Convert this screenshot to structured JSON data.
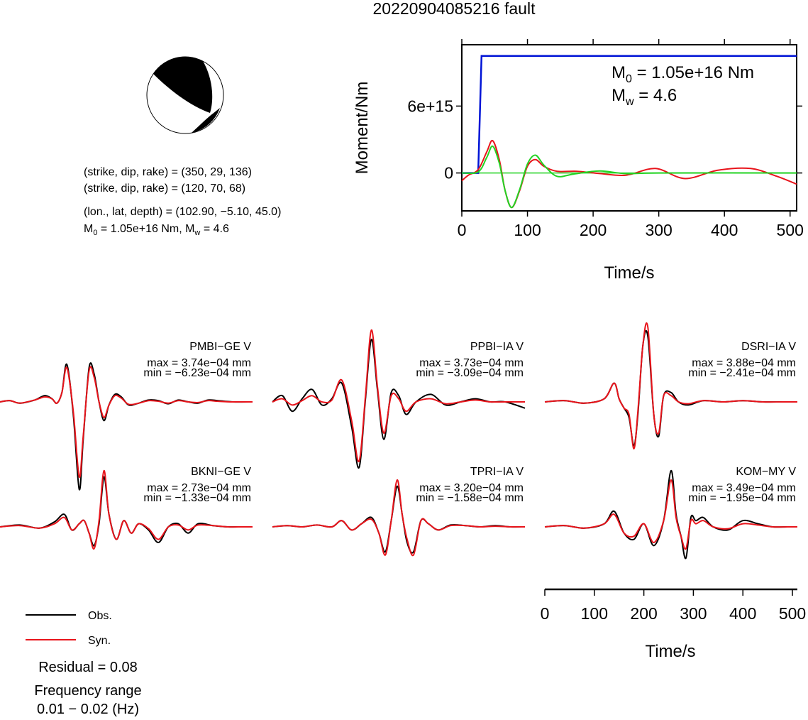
{
  "title": "20220904085216 fault",
  "colors": {
    "obs": "#000000",
    "syn": "#e8141b",
    "moment": "#0014d6",
    "stf": "#23d323",
    "frame": "#000000",
    "beach_fill": "#000000"
  },
  "mechanism": {
    "line1": "(strike, dip, rake) = (350, 29, 136)",
    "line2": "(strike, dip, rake) = (120, 70, 68)",
    "line3": "(lon., lat, depth) = (102.90, −5.10, 45.0)",
    "m0_prefix": "M",
    "m0_sub": "0",
    "m0_text": " = 1.05e+16 Nm, M",
    "mw_sub": "w",
    "mw_text": " = 4.6"
  },
  "moment_panel": {
    "ylabel": "Moment/Nm",
    "xlabel": "Time/s",
    "m0_label_prefix": "M",
    "m0_label_sub": "0",
    "m0_label_text": " = 1.05e+16 Nm",
    "mw_label_prefix": "M",
    "mw_label_sub": "w",
    "mw_label_text": " = 4.6"
  },
  "waveform_time_axis": {
    "xlabel": "Time/s"
  },
  "legend": {
    "obs_label": "Obs.",
    "syn_label": "Syn."
  },
  "residual": "Residual = 0.08",
  "freq_title": "Frequency range",
  "freq_value": "0.01 − 0.02 (Hz)",
  "stations": [
    {
      "name": "PMBI−GE V",
      "max": "max = 3.74e−04 mm",
      "min": "min = −6.23e−04 mm"
    },
    {
      "name": "PPBI−IA V",
      "max": "max = 3.73e−04 mm",
      "min": "min = −3.09e−04 mm"
    },
    {
      "name": "DSRI−IA V",
      "max": "max = 3.88e−04 mm",
      "min": "min = −2.41e−04 mm"
    },
    {
      "name": "BKNI−GE V",
      "max": "max = 2.73e−04 mm",
      "min": "min = −1.33e−04 mm"
    },
    {
      "name": "TPRI−IA V",
      "max": "max = 3.20e−04 mm",
      "min": "min = −1.58e−04 mm"
    },
    {
      "name": "KOM−MY V",
      "max": "max = 3.49e−04 mm",
      "min": "min = −1.95e−04 mm"
    }
  ],
  "chart_data": [
    {
      "type": "line",
      "title": "",
      "xlabel": "Time/s",
      "ylabel": "Moment/Nm",
      "xlim": [
        0,
        510
      ],
      "ylim": [
        -3400000000000000.0,
        1.15e+16
      ],
      "xticks": [
        "0",
        "100",
        "200",
        "300",
        "400",
        "500"
      ],
      "yticks": [
        "0",
        "6e+15"
      ],
      "series": [
        {
          "name": "moment",
          "color": "#0014d6",
          "x": [
            0,
            20,
            25,
            30,
            510
          ],
          "y": [
            0,
            0,
            0,
            1.05e+16,
            1.05e+16
          ]
        },
        {
          "name": "stf_red",
          "color": "#e8141b",
          "x": [
            0,
            10,
            25,
            38,
            47,
            57,
            66,
            76,
            88,
            100,
            112,
            125,
            145,
            175,
            210,
            250,
            295,
            340,
            390,
            440,
            480,
            510
          ],
          "y": [
            -700000000000000.0,
            -200000000000000.0,
            300000000000000.0,
            1900000000000000.0,
            2900000000000000.0,
            1200000000000000.0,
            -1600000000000000.0,
            -3100000000000000.0,
            -1600000000000000.0,
            600000000000000.0,
            1200000000000000.0,
            600000000000000.0,
            150000000000000.0,
            150000000000000.0,
            -50000000000000.0,
            -200000000000000.0,
            400000000000000.0,
            -500000000000000.0,
            250000000000000.0,
            400000000000000.0,
            -300000000000000.0,
            -1000000000000000.0
          ]
        },
        {
          "name": "stf_green",
          "color": "#23d323",
          "x": [
            0,
            25,
            38,
            47,
            57,
            66,
            76,
            88,
            100,
            112,
            125,
            145,
            170,
            210,
            250,
            300,
            510
          ],
          "y": [
            0,
            100000000000000.0,
            1400000000000000.0,
            2400000000000000.0,
            900000000000000.0,
            -1600000000000000.0,
            -3100000000000000.0,
            -1500000000000000.0,
            800000000000000.0,
            1600000000000000.0,
            700000000000000.0,
            -300000000000000.0,
            -100000000000000.0,
            180000000000000.0,
            -60000000000000.0,
            0,
            0
          ]
        }
      ]
    },
    {
      "type": "line",
      "title": "",
      "xlabel": "Time/s",
      "xlim": [
        0,
        510
      ],
      "xticks": [
        "0",
        "100",
        "200",
        "300",
        "400",
        "500"
      ],
      "yunits": "normalized",
      "waveforms": [
        {
          "station": "PMBI−GE V",
          "obs_t": [
            0,
            20,
            40,
            70,
            90,
            105,
            115,
            125,
            135,
            148,
            160,
            168,
            180,
            190,
            200,
            210,
            220,
            232,
            245,
            260,
            280,
            300,
            320,
            340,
            360,
            380,
            400,
            420,
            440,
            470,
            510
          ],
          "obs_y": [
            0,
            0.02,
            -0.02,
            0.03,
            0.1,
            0.05,
            -0.02,
            0.15,
            0.6,
            -0.2,
            -1.4,
            -0.6,
            0.55,
            0.45,
            0,
            -0.3,
            -0.05,
            0.12,
            0.08,
            -0.05,
            -0.02,
            0.03,
            0.02,
            -0.03,
            0.03,
            0.0,
            -0.02,
            0.03,
            0.02,
            0.0,
            0.0
          ],
          "syn_t": [
            0,
            20,
            40,
            70,
            90,
            105,
            115,
            125,
            135,
            148,
            160,
            168,
            180,
            190,
            200,
            210,
            220,
            232,
            245,
            260,
            280,
            300,
            320,
            340,
            360,
            380,
            400,
            420,
            440,
            470,
            510
          ],
          "syn_y": [
            0,
            0.02,
            -0.02,
            0.03,
            0.08,
            0.05,
            -0.02,
            0.15,
            0.55,
            -0.15,
            -1.2,
            -0.55,
            0.5,
            0.4,
            0,
            -0.25,
            -0.05,
            0.1,
            0.06,
            -0.04,
            -0.02,
            0.02,
            0.01,
            -0.02,
            0.02,
            0.0,
            -0.01,
            0.02,
            0.01,
            0.0,
            0.0
          ]
        },
        {
          "station": "PPBI−IA V",
          "obs_t": [
            0,
            20,
            40,
            60,
            80,
            100,
            120,
            140,
            160,
            175,
            188,
            200,
            212,
            225,
            240,
            255,
            270,
            290,
            320,
            350,
            380,
            410,
            440,
            470,
            510
          ],
          "obs_y": [
            0,
            0.1,
            -0.15,
            0.05,
            0.2,
            -0.05,
            0.05,
            0.3,
            -0.4,
            -1.05,
            0.05,
            1.0,
            0.2,
            -0.6,
            0.15,
            0.1,
            -0.2,
            0.0,
            0.12,
            -0.05,
            0.0,
            0.05,
            0.0,
            0.0,
            -0.1
          ],
          "syn_t": [
            0,
            20,
            40,
            60,
            80,
            100,
            120,
            140,
            160,
            175,
            188,
            200,
            212,
            225,
            240,
            255,
            270,
            290,
            320,
            350,
            380,
            410,
            440,
            470,
            510
          ],
          "syn_y": [
            0,
            0.05,
            -0.05,
            0.02,
            0.1,
            0.0,
            0.03,
            0.35,
            -0.3,
            -0.95,
            0.1,
            1.15,
            0.25,
            -0.5,
            0.1,
            0.05,
            -0.15,
            0.0,
            0.05,
            -0.03,
            0.0,
            0.03,
            0.0,
            0.0,
            0.0
          ]
        },
        {
          "station": "DSRI−IA V",
          "obs_t": [
            0,
            40,
            80,
            120,
            140,
            150,
            160,
            170,
            180,
            188,
            198,
            208,
            220,
            230,
            240,
            255,
            270,
            290,
            320,
            360,
            400,
            440,
            480,
            510
          ],
          "obs_y": [
            0,
            0.02,
            -0.02,
            0.05,
            0.3,
            0.05,
            -0.1,
            -0.25,
            -0.7,
            -0.2,
            0.9,
            1.05,
            -0.2,
            -0.55,
            0.1,
            0.15,
            0.0,
            -0.05,
            0.02,
            0.0,
            0.02,
            0.0,
            0.0,
            0.0
          ],
          "syn_t": [
            0,
            40,
            80,
            120,
            140,
            150,
            160,
            170,
            180,
            188,
            198,
            208,
            220,
            230,
            240,
            255,
            270,
            290,
            320,
            360,
            400,
            440,
            480,
            510
          ],
          "syn_y": [
            0,
            0.02,
            -0.02,
            0.05,
            0.3,
            0.05,
            -0.1,
            -0.2,
            -0.75,
            -0.15,
            0.9,
            1.2,
            -0.2,
            -0.5,
            0.1,
            0.1,
            0.0,
            -0.03,
            0.02,
            0.0,
            0.02,
            0.0,
            0.0,
            0.0
          ]
        },
        {
          "station": "BKNI−GE V",
          "obs_t": [
            0,
            40,
            80,
            110,
            130,
            145,
            160,
            170,
            180,
            190,
            200,
            210,
            220,
            235,
            250,
            265,
            280,
            300,
            320,
            340,
            360,
            380,
            400,
            430,
            460,
            490,
            510
          ],
          "obs_y": [
            0,
            0.03,
            -0.02,
            0.08,
            0.2,
            -0.05,
            0.05,
            0.1,
            -0.1,
            -0.3,
            0.05,
            0.8,
            0.2,
            -0.2,
            0.1,
            -0.1,
            0.05,
            -0.05,
            -0.25,
            0.0,
            0.05,
            -0.1,
            0.05,
            0.02,
            0.0,
            0.0,
            0.0
          ],
          "syn_t": [
            0,
            40,
            80,
            110,
            130,
            145,
            160,
            170,
            180,
            190,
            200,
            210,
            220,
            235,
            250,
            265,
            280,
            300,
            320,
            340,
            360,
            380,
            400,
            430,
            460,
            490,
            510
          ],
          "syn_y": [
            0,
            0.02,
            -0.02,
            0.05,
            0.15,
            -0.05,
            0.05,
            0.1,
            -0.1,
            -0.35,
            0.1,
            0.9,
            0.2,
            -0.2,
            0.1,
            -0.1,
            0.05,
            -0.03,
            -0.2,
            0.0,
            0.03,
            -0.05,
            0.03,
            0.02,
            0.0,
            0.0,
            0.0
          ]
        },
        {
          "station": "TPRI−IA V",
          "obs_t": [
            0,
            30,
            60,
            90,
            120,
            140,
            160,
            180,
            200,
            215,
            228,
            240,
            252,
            262,
            272,
            285,
            300,
            315,
            335,
            360,
            390,
            420,
            450,
            480,
            510
          ],
          "obs_y": [
            0,
            0.02,
            0.0,
            0.03,
            0.0,
            0.1,
            -0.05,
            0.05,
            0.15,
            -0.1,
            -0.4,
            0.1,
            0.65,
            0.2,
            -0.25,
            -0.4,
            0.1,
            0.05,
            -0.05,
            0.03,
            0.02,
            0.0,
            0.02,
            0.0,
            0.0
          ],
          "syn_t": [
            0,
            30,
            60,
            90,
            120,
            140,
            160,
            180,
            200,
            215,
            228,
            240,
            252,
            262,
            272,
            285,
            300,
            315,
            335,
            360,
            390,
            420,
            450,
            480,
            510
          ],
          "syn_y": [
            0,
            0.02,
            0.0,
            0.03,
            0.0,
            0.1,
            -0.05,
            0.05,
            0.12,
            -0.1,
            -0.45,
            0.1,
            0.75,
            0.2,
            -0.2,
            -0.45,
            0.1,
            0.05,
            -0.05,
            0.02,
            0.02,
            0.0,
            0.01,
            0.0,
            0.0
          ]
        },
        {
          "station": "KOM−MY V",
          "obs_t": [
            0,
            40,
            80,
            120,
            140,
            160,
            180,
            200,
            220,
            240,
            255,
            265,
            275,
            285,
            295,
            305,
            320,
            340,
            370,
            400,
            430,
            460,
            490,
            510
          ],
          "obs_y": [
            0,
            0.02,
            -0.02,
            0.05,
            0.25,
            -0.1,
            -0.2,
            0.05,
            -0.3,
            0.1,
            0.9,
            0.2,
            -0.15,
            -0.5,
            0.15,
            0.1,
            0.15,
            0.0,
            -0.05,
            0.1,
            0.05,
            0.0,
            0.0,
            0.0
          ],
          "syn_t": [
            0,
            40,
            80,
            120,
            140,
            160,
            180,
            200,
            220,
            240,
            255,
            265,
            275,
            285,
            295,
            305,
            320,
            340,
            370,
            400,
            430,
            460,
            490,
            510
          ],
          "syn_y": [
            0,
            0.02,
            -0.02,
            0.05,
            0.2,
            -0.1,
            -0.15,
            0.05,
            -0.25,
            0.1,
            0.75,
            0.15,
            -0.15,
            -0.35,
            0.1,
            0.05,
            0.1,
            0.0,
            -0.03,
            0.05,
            0.03,
            0.0,
            0.0,
            0.0
          ]
        }
      ]
    }
  ]
}
